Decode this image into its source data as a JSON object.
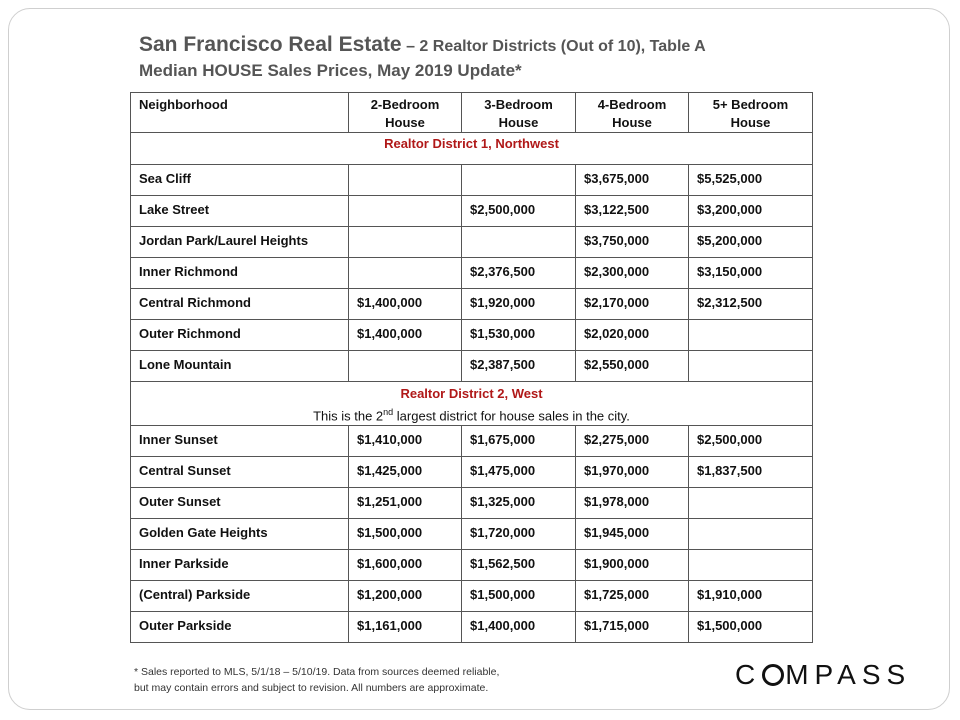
{
  "title": {
    "main": "San Francisco Real Estate",
    "rest": " – 2 Realtor Districts (Out of 10), Table A",
    "line2": "Median HOUSE Sales Prices, May 2019 Update*"
  },
  "table": {
    "headers": [
      "Neighborhood",
      "2-Bedroom House",
      "3-Bedroom House",
      "4-Bedroom House",
      "5+ Bedroom House"
    ],
    "district1": "Realtor District 1, Northwest",
    "district1_rows": [
      [
        "Sea Cliff",
        "",
        "",
        "$3,675,000",
        "$5,525,000"
      ],
      [
        "Lake Street",
        "",
        "$2,500,000",
        "$3,122,500",
        "$3,200,000"
      ],
      [
        "Jordan Park/Laurel Heights",
        "",
        "",
        "$3,750,000",
        "$5,200,000"
      ],
      [
        "Inner Richmond",
        "",
        "$2,376,500",
        "$2,300,000",
        "$3,150,000"
      ],
      [
        "Central Richmond",
        "$1,400,000",
        "$1,920,000",
        "$2,170,000",
        "$2,312,500"
      ],
      [
        "Outer Richmond",
        "$1,400,000",
        "$1,530,000",
        "$2,020,000",
        ""
      ],
      [
        "Lone Mountain",
        "",
        "$2,387,500",
        "$2,550,000",
        ""
      ]
    ],
    "district2": "Realtor District 2, West",
    "district2_note_a": "This is the 2",
    "district2_note_sup": "nd",
    "district2_note_b": " largest district for house sales in the city.",
    "district2_rows": [
      [
        "Inner Sunset",
        "$1,410,000",
        "$1,675,000",
        "$2,275,000",
        "$2,500,000"
      ],
      [
        "Central Sunset",
        "$1,425,000",
        "$1,475,000",
        "$1,970,000",
        "$1,837,500"
      ],
      [
        "Outer Sunset",
        "$1,251,000",
        "$1,325,000",
        "$1,978,000",
        ""
      ],
      [
        "Golden Gate Heights",
        "$1,500,000",
        "$1,720,000",
        "$1,945,000",
        ""
      ],
      [
        "Inner Parkside",
        "$1,600,000",
        "$1,562,500",
        "$1,900,000",
        ""
      ],
      [
        "(Central) Parkside",
        "$1,200,000",
        "$1,500,000",
        "$1,725,000",
        "$1,910,000"
      ],
      [
        "Outer Parkside",
        "$1,161,000",
        "$1,400,000",
        "$1,715,000",
        "$1,500,000"
      ]
    ]
  },
  "footnote": {
    "line1": "* Sales reported to MLS, 5/1/18 – 5/10/19. Data from sources deemed reliable,",
    "line2": "but may contain errors and subject to revision.  All numbers are approximate."
  },
  "logo": {
    "text": "COMPASS",
    "pre": "C",
    "post": "MPASS"
  },
  "colors": {
    "district_heading": "#b01818",
    "title": "#555555"
  }
}
